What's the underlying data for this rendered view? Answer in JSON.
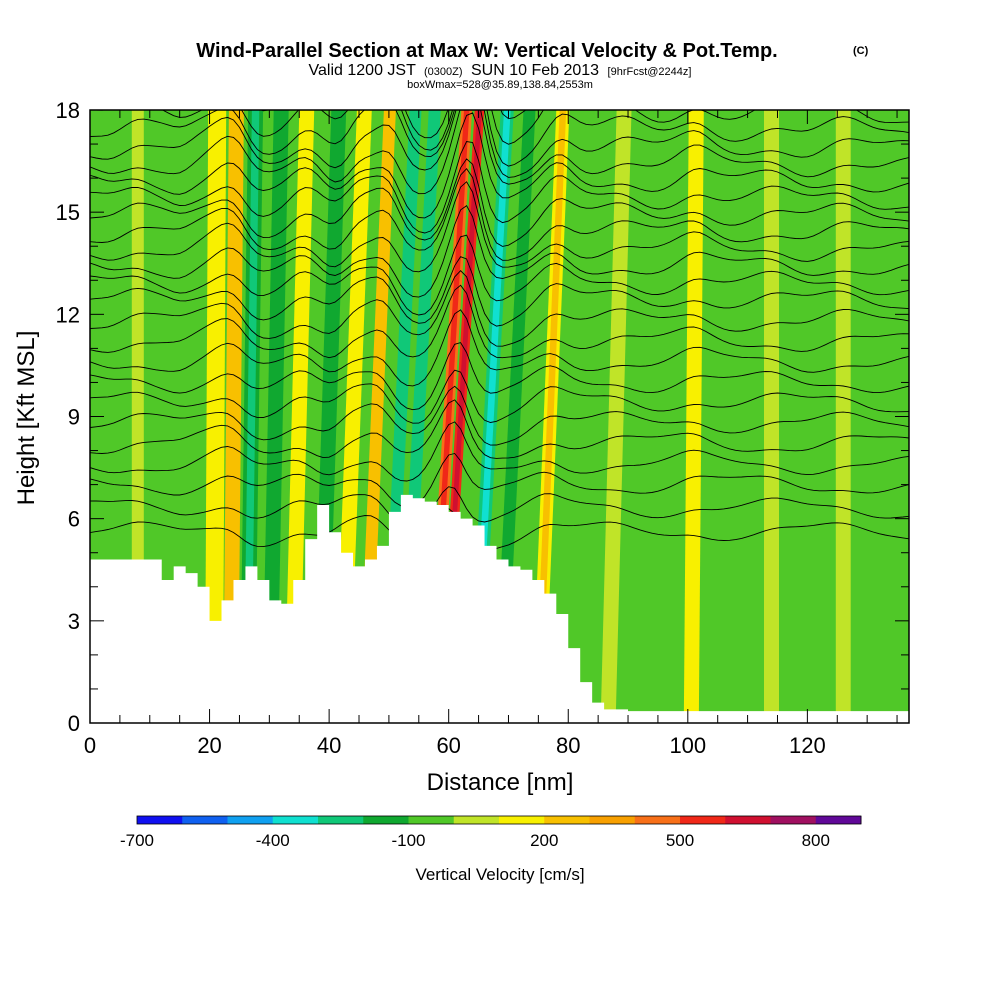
{
  "chart_data": {
    "type": "heatmap",
    "title": "Wind-Parallel Section at Max W: Vertical Velocity & Pot.Temp.",
    "title_mark": "(C)",
    "subtitle_parts": [
      "Valid 1200 JST",
      "(0300Z)",
      "SUN 10 Feb 2013",
      "[9hrFcst@2244z]"
    ],
    "subtitle2": "boxWmax=528@35.89,138.84,2553m",
    "xlabel": "Distance [nm]",
    "ylabel": "Height [Kft MSL]",
    "xlim": [
      0,
      137
    ],
    "ylim": [
      0,
      18
    ],
    "x_ticks": [
      "0",
      "20",
      "40",
      "60",
      "80",
      "100",
      "120"
    ],
    "y_ticks": [
      "0",
      "3",
      "6",
      "9",
      "12",
      "15",
      "18"
    ],
    "colorbar": {
      "label": "Vertical Velocity [cm/s]",
      "tick_labels": [
        "-700",
        "-400",
        "-100",
        "200",
        "500",
        "800"
      ],
      "tick_values": [
        -700,
        -400,
        -100,
        200,
        500,
        800
      ],
      "range": [
        -700,
        900
      ],
      "colors": [
        "#1010f0",
        "#1060f0",
        "#10a0f0",
        "#10e0d0",
        "#10c878",
        "#10a830",
        "#50c828",
        "#c0e428",
        "#f8f000",
        "#f8c000",
        "#f8a000",
        "#f87018",
        "#f02818",
        "#d01030",
        "#a01060",
        "#600898"
      ]
    },
    "terrain_profile_x": [
      0,
      10,
      12,
      14,
      16,
      18,
      20,
      22,
      24,
      26,
      28,
      30,
      32,
      34,
      36,
      38,
      40,
      42,
      44,
      46,
      48,
      50,
      52,
      54,
      56,
      58,
      60,
      62,
      64,
      66,
      68,
      70,
      72,
      74,
      76,
      78,
      80,
      82,
      84,
      86,
      90,
      137
    ],
    "terrain_profile_kft": [
      4.8,
      4.8,
      4.2,
      4.6,
      4.4,
      4.0,
      3.0,
      3.6,
      4.2,
      4.6,
      4.2,
      3.6,
      3.5,
      4.2,
      5.4,
      6.4,
      5.6,
      5.0,
      4.6,
      4.8,
      5.2,
      6.2,
      6.7,
      6.6,
      6.5,
      6.4,
      6.2,
      6.0,
      5.8,
      5.2,
      4.8,
      4.6,
      4.5,
      4.2,
      3.8,
      3.2,
      2.2,
      1.2,
      0.6,
      0.4,
      0.35,
      0.35
    ],
    "w_bands": [
      {
        "x": 3,
        "w": -40,
        "width": 2
      },
      {
        "x": 8,
        "w": 60,
        "width": 2
      },
      {
        "x": 15,
        "w": -60,
        "width": 2
      },
      {
        "x": 21,
        "w": 120,
        "width": 3
      },
      {
        "x": 24,
        "w": 210,
        "width": 2.5
      },
      {
        "x": 27,
        "w": -180,
        "width": 2.5
      },
      {
        "x": 31,
        "w": -110,
        "width": 2.5
      },
      {
        "x": 35,
        "w": 100,
        "width": 2.5
      },
      {
        "x": 40,
        "w": -170,
        "width": 2.5
      },
      {
        "x": 44,
        "w": 170,
        "width": 2.5
      },
      {
        "x": 48,
        "w": 210,
        "width": 2
      },
      {
        "x": 52,
        "w": -230,
        "width": 2
      },
      {
        "x": 55,
        "w": -260,
        "width": 2
      },
      {
        "x": 60,
        "w": 480,
        "width": 1.8
      },
      {
        "x": 62,
        "w": 528,
        "width": 1.6
      },
      {
        "x": 67,
        "w": -270,
        "width": 2.2
      },
      {
        "x": 71,
        "w": -140,
        "width": 2
      },
      {
        "x": 77,
        "w": 180,
        "width": 2.2
      },
      {
        "x": 83,
        "w": -20,
        "width": 2.5
      },
      {
        "x": 88,
        "w": 70,
        "width": 2.5
      },
      {
        "x": 94,
        "w": -40,
        "width": 2.5
      },
      {
        "x": 101,
        "w": 130,
        "width": 2.5
      },
      {
        "x": 108,
        "w": -30,
        "width": 2.5
      },
      {
        "x": 114,
        "w": 60,
        "width": 2.5
      },
      {
        "x": 120,
        "w": -50,
        "width": 2.5
      },
      {
        "x": 126,
        "w": 60,
        "width": 2.5
      },
      {
        "x": 132,
        "w": -40,
        "width": 2.5
      }
    ],
    "theta_contour_base_kft": [
      5.6,
      6.3,
      7.0,
      7.6,
      8.2,
      8.8,
      9.4,
      10.0,
      10.6,
      11.2,
      11.8,
      12.4,
      12.9,
      13.4,
      13.9,
      14.4,
      14.9,
      15.4,
      15.9,
      16.4,
      16.9,
      17.4,
      17.9,
      18.4
    ]
  }
}
